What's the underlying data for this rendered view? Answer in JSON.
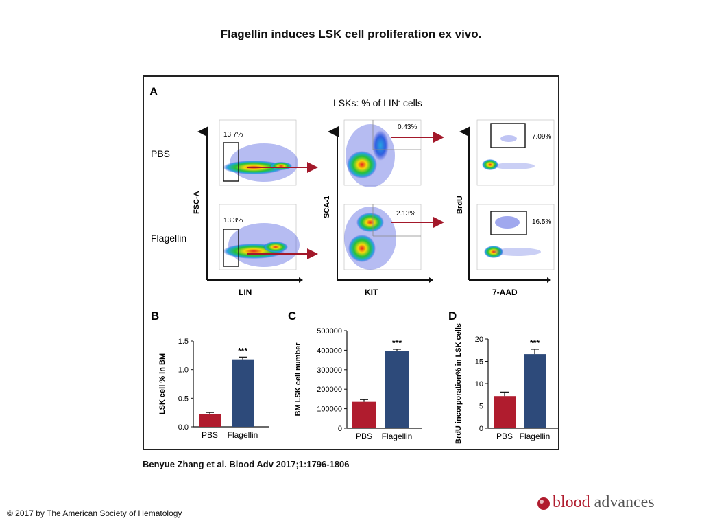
{
  "title": "Flagellin induces LSK cell proliferation ex vivo.",
  "citation": "Benyue Zhang et al. Blood Adv 2017;1:1796-1806",
  "copyright": "© 2017 by The American Society of Hematology",
  "logo": {
    "part1": "blood",
    "part2": "advances"
  },
  "panel_a": {
    "label": "A",
    "header": "LSKs: % of LIN",
    "header_sup": "-",
    "header_tail": " cells",
    "row_labels": [
      "PBS",
      "Flagellin"
    ],
    "axes": {
      "col1_x": "LIN",
      "col1_y": "FSC-A",
      "col2_x": "KIT",
      "col2_y": "SCA-1",
      "col3_x": "7-AAD",
      "col3_y": "BrdU"
    },
    "gates": {
      "pbs": [
        "13.7%",
        "0.43%",
        "7.09%"
      ],
      "flagellin": [
        "13.3%",
        "2.13%",
        "16.5%"
      ]
    }
  },
  "chart_data": [
    {
      "type": "bar",
      "panel": "B",
      "categories": [
        "PBS",
        "Flagellin"
      ],
      "values": [
        0.22,
        1.18
      ],
      "errors": [
        0.03,
        0.04
      ],
      "ylabel": "LSK cell % in BM",
      "ylim": [
        0,
        1.5
      ],
      "yticks": [
        "0.0",
        "0.5",
        "1.0",
        "1.5"
      ],
      "significance": "***",
      "colors": [
        "#b01c2e",
        "#2d4a7a"
      ]
    },
    {
      "type": "bar",
      "panel": "C",
      "categories": [
        "PBS",
        "Flagellin"
      ],
      "values": [
        135000,
        395000
      ],
      "errors": [
        12000,
        10000
      ],
      "ylabel": "BM LSK cell number",
      "ylim": [
        0,
        500000
      ],
      "yticks": [
        "0",
        "100000",
        "200000",
        "300000",
        "400000",
        "500000"
      ],
      "significance": "***",
      "colors": [
        "#b01c2e",
        "#2d4a7a"
      ]
    },
    {
      "type": "bar",
      "panel": "D",
      "categories": [
        "PBS",
        "Flagellin"
      ],
      "values": [
        7.2,
        16.6
      ],
      "errors": [
        0.9,
        1.1
      ],
      "ylabel": "BrdU incorporation% in LSK cells",
      "ylim": [
        0,
        20
      ],
      "yticks": [
        "0",
        "5",
        "10",
        "15",
        "20"
      ],
      "significance": "***",
      "colors": [
        "#b01c2e",
        "#2d4a7a"
      ]
    }
  ]
}
